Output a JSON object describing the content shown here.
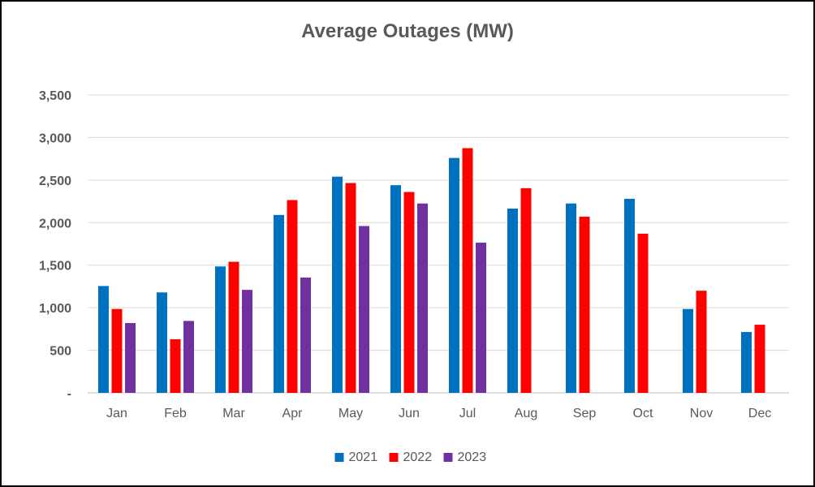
{
  "chart_data": {
    "type": "bar",
    "title": "Average Outages (MW)",
    "xlabel": "",
    "ylabel": "",
    "categories": [
      "Jan",
      "Feb",
      "Mar",
      "Apr",
      "May",
      "Jun",
      "Jul",
      "Aug",
      "Sep",
      "Oct",
      "Nov",
      "Dec"
    ],
    "ylim": [
      0,
      3500
    ],
    "yticks": [
      0,
      500,
      1000,
      1500,
      2000,
      2500,
      3000,
      3500
    ],
    "ytick_labels": [
      "-",
      "500",
      "1,000",
      "1,500",
      "2,000",
      "2,500",
      "3,000",
      "3,500"
    ],
    "grid": true,
    "legend_position": "bottom",
    "series": [
      {
        "name": "2021",
        "color": "#0070C0",
        "values": [
          1255,
          1180,
          1485,
          2090,
          2540,
          2440,
          2760,
          2165,
          2225,
          2280,
          985,
          715
        ]
      },
      {
        "name": "2022",
        "color": "#FF0000",
        "values": [
          985,
          630,
          1540,
          2265,
          2465,
          2360,
          2875,
          2405,
          2070,
          1870,
          1200,
          800
        ]
      },
      {
        "name": "2023",
        "color": "#7030A0",
        "values": [
          820,
          845,
          1210,
          1355,
          1960,
          2225,
          1765,
          null,
          null,
          null,
          null,
          null
        ]
      }
    ]
  }
}
